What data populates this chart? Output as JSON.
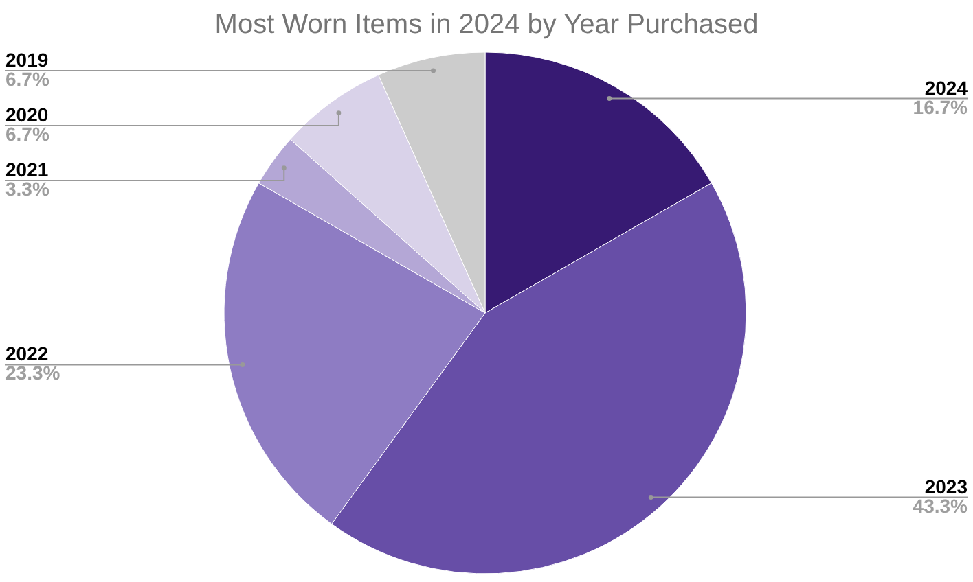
{
  "chart_data": {
    "type": "pie",
    "title": "Most Worn Items in 2024 by Year Purchased",
    "categories": [
      "2024",
      "2023",
      "2022",
      "2021",
      "2020",
      "2019"
    ],
    "values": [
      16.7,
      43.3,
      23.3,
      3.3,
      6.7,
      6.7
    ],
    "colors": [
      "#371a73",
      "#674ea7",
      "#8e7cc3",
      "#b4a7d6",
      "#d9d2e9",
      "#cccccc"
    ],
    "value_labels": [
      "16.7%",
      "43.3%",
      "23.3%",
      "3.3%",
      "6.7%",
      "6.7%"
    ]
  }
}
